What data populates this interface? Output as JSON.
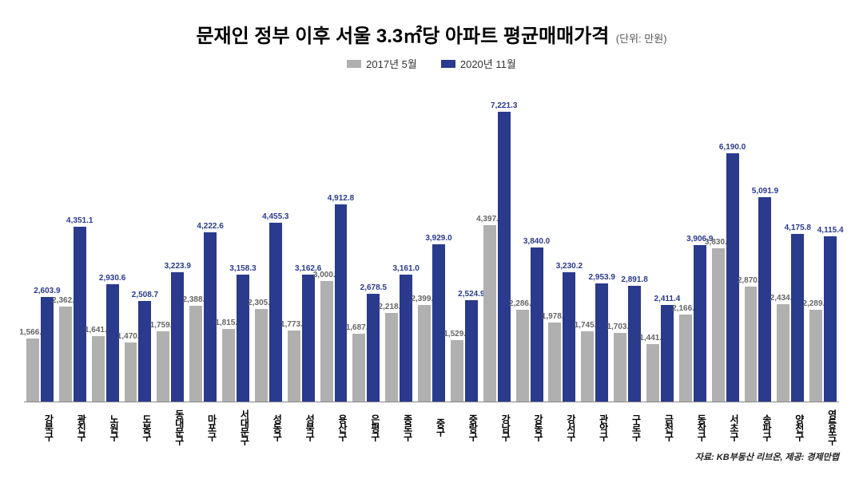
{
  "title": "문재인 정부 이후 서울 3.3㎡당 아파트 평균매매가격",
  "unit": "(단위: 만원)",
  "legend": [
    {
      "label": "2017년 5월",
      "color": "#b0b0b0"
    },
    {
      "label": "2020년 11월",
      "color": "#2a3a8c"
    }
  ],
  "source": "자료: KB부동산 리브온, 제공: 경제만랩",
  "chart": {
    "type": "bar",
    "ylim": [
      0,
      8000
    ],
    "bar_width": 0.4,
    "background_color": "#ffffff",
    "series_a_color": "#b0b0b0",
    "series_b_color": "#2a3a8c",
    "label_a_color": "#666666",
    "label_b_color": "#2a3a8c",
    "title_fontsize": 24,
    "label_fontsize": 10,
    "axis_color": "#888888",
    "categories": [
      "강북구",
      "광진구",
      "노원구",
      "도봉구",
      "동대문구",
      "마포구",
      "서대문구",
      "성동구",
      "성북구",
      "용산구",
      "은평구",
      "종로구",
      "중구",
      "중랑구",
      "강남구",
      "강동구",
      "강서구",
      "관악구",
      "구로구",
      "금천구",
      "동작구",
      "서초구",
      "송파구",
      "양천구",
      "영등포구"
    ],
    "values_a": [
      1566.5,
      2362.7,
      1641.2,
      1470.8,
      1759.2,
      2388.4,
      1815.5,
      2305.9,
      1773.7,
      3000.1,
      1687.0,
      2218.3,
      2399.0,
      1529.4,
      4397.1,
      2286.7,
      1978.5,
      1745.9,
      1703.4,
      1441.3,
      2166.0,
      3830.6,
      2870.0,
      2434.7,
      2289.7
    ],
    "values_b": [
      2603.9,
      4351.1,
      2930.6,
      2508.7,
      3223.9,
      4222.6,
      3158.3,
      4455.3,
      3162.6,
      4912.8,
      2678.5,
      3161.0,
      3929.0,
      2524.9,
      7221.3,
      3840.0,
      3230.2,
      2953.9,
      2891.8,
      2411.4,
      3906.9,
      6190.0,
      5091.9,
      4175.8,
      4115.4
    ],
    "labels_a": [
      "1,566.5",
      "2,362.7",
      "1,641.2",
      "1,470.8",
      "1,759.2",
      "2,388.4",
      "1,815.5",
      "2,305.9",
      "1,773.7",
      "3,000.1",
      "1,687.0",
      "2,218.3",
      "2,399.0",
      "1,529.4",
      "4,397.1",
      "2,286.7",
      "1,978.5",
      "1,745.9",
      "1,703.4",
      "1,441.3",
      "2,166.0",
      "3,830.6",
      "2,870.0",
      "2,434.7",
      "2,289.7"
    ],
    "labels_b": [
      "2,603.9",
      "4,351.1",
      "2,930.6",
      "2,508.7",
      "3,223.9",
      "4,222.6",
      "3,158.3",
      "4,455.3",
      "3,162.6",
      "4,912.8",
      "2,678.5",
      "3,161.0",
      "3,929.0",
      "2,524.9",
      "7,221.3",
      "3,840.0",
      "3,230.2",
      "2,953.9",
      "2,891.8",
      "2,411.4",
      "3,906.9",
      "6,190.0",
      "5,091.9",
      "4,175.8",
      "4,115.4"
    ]
  }
}
